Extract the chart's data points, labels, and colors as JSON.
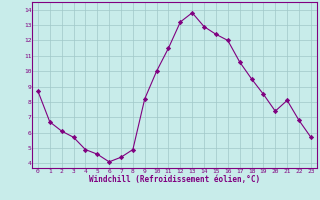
{
  "x": [
    0,
    1,
    2,
    3,
    4,
    5,
    6,
    7,
    8,
    9,
    10,
    11,
    12,
    13,
    14,
    15,
    16,
    17,
    18,
    19,
    20,
    21,
    22,
    23
  ],
  "y": [
    8.7,
    6.7,
    6.1,
    5.7,
    4.9,
    4.6,
    4.1,
    4.4,
    4.9,
    8.2,
    10.0,
    11.5,
    13.2,
    13.8,
    12.9,
    12.4,
    12.0,
    10.6,
    9.5,
    8.5,
    7.4,
    8.1,
    6.8,
    5.7
  ],
  "line_color": "#800080",
  "marker": "D",
  "marker_size": 2.2,
  "bg_color": "#c8ecea",
  "grid_color": "#a0c8c8",
  "xlabel": "Windchill (Refroidissement éolien,°C)",
  "xlabel_color": "#800080",
  "ylabel_ticks": [
    4,
    5,
    6,
    7,
    8,
    9,
    10,
    11,
    12,
    13,
    14
  ],
  "ylim": [
    3.7,
    14.5
  ],
  "xlim": [
    -0.5,
    23.5
  ],
  "xticks": [
    0,
    1,
    2,
    3,
    4,
    5,
    6,
    7,
    8,
    9,
    10,
    11,
    12,
    13,
    14,
    15,
    16,
    17,
    18,
    19,
    20,
    21,
    22,
    23
  ],
  "tick_color": "#800080",
  "spine_color": "#800080",
  "tick_fontsize": 4.5,
  "xlabel_fontsize": 5.5
}
